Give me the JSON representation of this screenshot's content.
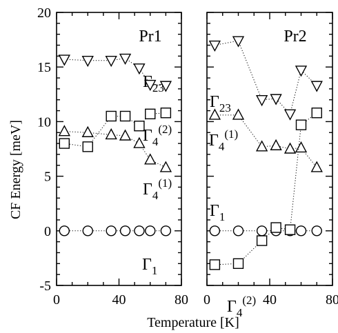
{
  "chart_data": {
    "type": "scatter",
    "ylabel": "CF Energy [meV]",
    "xlabel": "Temperature [K]",
    "ylim": [
      -5,
      20
    ],
    "yticks": [
      "-5",
      "0",
      "5",
      "10",
      "15",
      "20"
    ],
    "xlim": [
      0,
      80
    ],
    "xticks": [
      "0",
      "40",
      "80"
    ],
    "grid": false,
    "panels": [
      {
        "title": "Pr1",
        "series": [
          {
            "symbol": "circle",
            "label_main": "Γ",
            "label_sub": "1",
            "label_sup": "",
            "x": [
              5,
              20,
              35,
              44,
              53,
              60,
              70
            ],
            "y": [
              0,
              0,
              0,
              0,
              0,
              0,
              0
            ]
          },
          {
            "symbol": "triangle-up",
            "label_main": "Γ",
            "label_sub": "4",
            "label_sup": "(1)",
            "x": [
              5,
              20,
              35,
              44,
              53,
              60,
              70
            ],
            "y": [
              9.1,
              9.0,
              8.8,
              8.7,
              8.0,
              6.5,
              5.8
            ]
          },
          {
            "symbol": "square",
            "label_main": "Γ",
            "label_sub": "4",
            "label_sup": "(2)",
            "x": [
              5,
              20,
              35,
              44,
              53,
              60,
              70
            ],
            "y": [
              8.0,
              7.7,
              10.5,
              10.5,
              9.6,
              10.7,
              10.8
            ]
          },
          {
            "symbol": "triangle-down",
            "label_main": "Γ",
            "label_sub": "23",
            "label_sup": "",
            "x": [
              5,
              20,
              35,
              44,
              53,
              60,
              70
            ],
            "y": [
              15.7,
              15.6,
              15.6,
              15.8,
              14.9,
              13.4,
              13.3
            ]
          }
        ]
      },
      {
        "title": "Pr2",
        "series": [
          {
            "symbol": "circle",
            "label_main": "Γ",
            "label_sub": "1",
            "label_sup": "",
            "x": [
              5,
              20,
              35,
              44,
              53,
              60,
              70
            ],
            "y": [
              0,
              0,
              0,
              0,
              0,
              0,
              0
            ]
          },
          {
            "symbol": "triangle-up",
            "label_main": "Γ",
            "label_sub": "4",
            "label_sup": "(1)",
            "x": [
              5,
              20,
              35,
              44,
              53,
              60,
              70
            ],
            "y": [
              10.6,
              10.6,
              7.7,
              7.8,
              7.5,
              7.6,
              5.8
            ]
          },
          {
            "symbol": "square",
            "label_main": "Γ",
            "label_sub": "4",
            "label_sup": "(2)",
            "x": [
              5,
              20,
              35,
              44,
              53,
              60,
              70
            ],
            "y": [
              -3.1,
              -3.0,
              -0.9,
              0.3,
              0.1,
              9.7,
              10.8
            ]
          },
          {
            "symbol": "triangle-down",
            "label_main": "Γ",
            "label_sub": "23",
            "label_sup": "",
            "x": [
              5,
              20,
              35,
              44,
              53,
              60,
              70
            ],
            "y": [
              17.0,
              17.4,
              12.0,
              12.1,
              10.7,
              14.7,
              13.3
            ]
          }
        ]
      }
    ]
  }
}
